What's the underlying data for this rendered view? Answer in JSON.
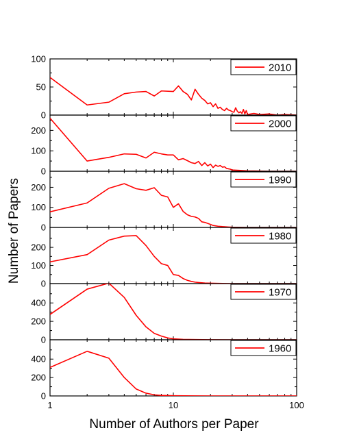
{
  "chart_data": {
    "type": "line",
    "xlabel": "Number of Authors per Paper",
    "ylabel": "Number of Papers",
    "xscale": "log",
    "xlim": [
      1,
      100
    ],
    "x_tick_labels": [
      "1",
      "10",
      "100"
    ],
    "series_color": "#ff0000",
    "legend_placement": "top-right",
    "panels": [
      {
        "name": "2010",
        "ylim": [
          0,
          100
        ],
        "y_tick_labels": [
          "0",
          "50",
          "100"
        ],
        "points": [
          [
            1,
            67
          ],
          [
            2,
            18
          ],
          [
            3,
            23
          ],
          [
            4,
            38
          ],
          [
            5,
            41
          ],
          [
            6,
            42
          ],
          [
            7,
            34
          ],
          [
            8,
            43
          ],
          [
            10,
            42
          ],
          [
            11,
            52
          ],
          [
            12,
            42
          ],
          [
            13,
            37
          ],
          [
            14,
            27
          ],
          [
            15,
            46
          ],
          [
            16,
            37
          ],
          [
            17,
            30
          ],
          [
            18,
            26
          ],
          [
            19,
            20
          ],
          [
            20,
            22
          ],
          [
            21,
            15
          ],
          [
            22,
            20
          ],
          [
            23,
            12
          ],
          [
            24,
            14
          ],
          [
            25,
            10
          ],
          [
            26,
            8
          ],
          [
            27,
            12
          ],
          [
            28,
            9
          ],
          [
            29,
            8
          ],
          [
            30,
            6
          ],
          [
            31,
            5
          ],
          [
            32,
            13
          ],
          [
            33,
            7
          ],
          [
            34,
            4
          ],
          [
            35,
            6
          ],
          [
            36,
            3
          ],
          [
            37,
            10
          ],
          [
            38,
            2
          ],
          [
            39,
            8
          ],
          [
            40,
            1
          ],
          [
            45,
            3
          ],
          [
            50,
            1
          ],
          [
            60,
            2
          ],
          [
            70,
            0
          ],
          [
            80,
            1
          ],
          [
            100,
            0
          ]
        ]
      },
      {
        "name": "2000",
        "ylim": [
          0,
          275
        ],
        "y_tick_labels": [
          "0",
          "100",
          "200"
        ],
        "points": [
          [
            1,
            260
          ],
          [
            2,
            50
          ],
          [
            3,
            68
          ],
          [
            4,
            85
          ],
          [
            5,
            83
          ],
          [
            6,
            65
          ],
          [
            7,
            93
          ],
          [
            8,
            85
          ],
          [
            9,
            80
          ],
          [
            10,
            80
          ],
          [
            11,
            56
          ],
          [
            12,
            62
          ],
          [
            13,
            52
          ],
          [
            14,
            42
          ],
          [
            15,
            38
          ],
          [
            16,
            48
          ],
          [
            17,
            28
          ],
          [
            18,
            42
          ],
          [
            19,
            26
          ],
          [
            20,
            35
          ],
          [
            21,
            18
          ],
          [
            22,
            30
          ],
          [
            23,
            24
          ],
          [
            24,
            28
          ],
          [
            25,
            20
          ],
          [
            26,
            22
          ],
          [
            27,
            14
          ],
          [
            28,
            12
          ],
          [
            29,
            10
          ],
          [
            30,
            6
          ],
          [
            35,
            4
          ],
          [
            40,
            2
          ],
          [
            50,
            1
          ],
          [
            60,
            0
          ],
          [
            100,
            0
          ]
        ]
      },
      {
        "name": "1990",
        "ylim": [
          0,
          280
        ],
        "y_tick_labels": [
          "0",
          "100",
          "200"
        ],
        "points": [
          [
            1,
            78
          ],
          [
            2,
            122
          ],
          [
            3,
            195
          ],
          [
            4,
            218
          ],
          [
            5,
            193
          ],
          [
            6,
            185
          ],
          [
            7,
            198
          ],
          [
            8,
            160
          ],
          [
            9,
            152
          ],
          [
            10,
            100
          ],
          [
            11,
            118
          ],
          [
            12,
            80
          ],
          [
            13,
            63
          ],
          [
            14,
            55
          ],
          [
            15,
            52
          ],
          [
            16,
            45
          ],
          [
            17,
            28
          ],
          [
            18,
            25
          ],
          [
            19,
            20
          ],
          [
            20,
            15
          ],
          [
            21,
            10
          ],
          [
            22,
            8
          ],
          [
            23,
            6
          ],
          [
            25,
            4
          ],
          [
            28,
            2
          ],
          [
            30,
            1
          ],
          [
            40,
            0
          ],
          [
            100,
            0
          ]
        ]
      },
      {
        "name": "1980",
        "ylim": [
          0,
          310
        ],
        "y_tick_labels": [
          "0",
          "100",
          "200"
        ],
        "points": [
          [
            1,
            120
          ],
          [
            2,
            160
          ],
          [
            3,
            240
          ],
          [
            4,
            262
          ],
          [
            5,
            265
          ],
          [
            6,
            210
          ],
          [
            7,
            150
          ],
          [
            8,
            110
          ],
          [
            9,
            100
          ],
          [
            10,
            50
          ],
          [
            11,
            45
          ],
          [
            12,
            28
          ],
          [
            13,
            18
          ],
          [
            14,
            12
          ],
          [
            15,
            8
          ],
          [
            16,
            6
          ],
          [
            18,
            3
          ],
          [
            20,
            2
          ],
          [
            25,
            1
          ],
          [
            30,
            0
          ],
          [
            100,
            0
          ]
        ]
      },
      {
        "name": "1970",
        "ylim": [
          0,
          610
        ],
        "y_tick_labels": [
          "0",
          "200",
          "400"
        ],
        "points": [
          [
            1,
            275
          ],
          [
            2,
            550
          ],
          [
            3,
            615
          ],
          [
            4,
            460
          ],
          [
            5,
            265
          ],
          [
            6,
            140
          ],
          [
            7,
            70
          ],
          [
            8,
            40
          ],
          [
            9,
            20
          ],
          [
            10,
            10
          ],
          [
            12,
            4
          ],
          [
            15,
            2
          ],
          [
            20,
            1
          ],
          [
            30,
            0
          ],
          [
            100,
            0
          ]
        ]
      },
      {
        "name": "1960",
        "ylim": [
          0,
          610
        ],
        "y_tick_labels": [
          "0",
          "200",
          "400"
        ],
        "points": [
          [
            1,
            310
          ],
          [
            2,
            485
          ],
          [
            3,
            410
          ],
          [
            4,
            200
          ],
          [
            5,
            75
          ],
          [
            6,
            30
          ],
          [
            7,
            12
          ],
          [
            8,
            6
          ],
          [
            10,
            2
          ],
          [
            15,
            1
          ],
          [
            20,
            0
          ],
          [
            100,
            0
          ]
        ]
      }
    ]
  }
}
